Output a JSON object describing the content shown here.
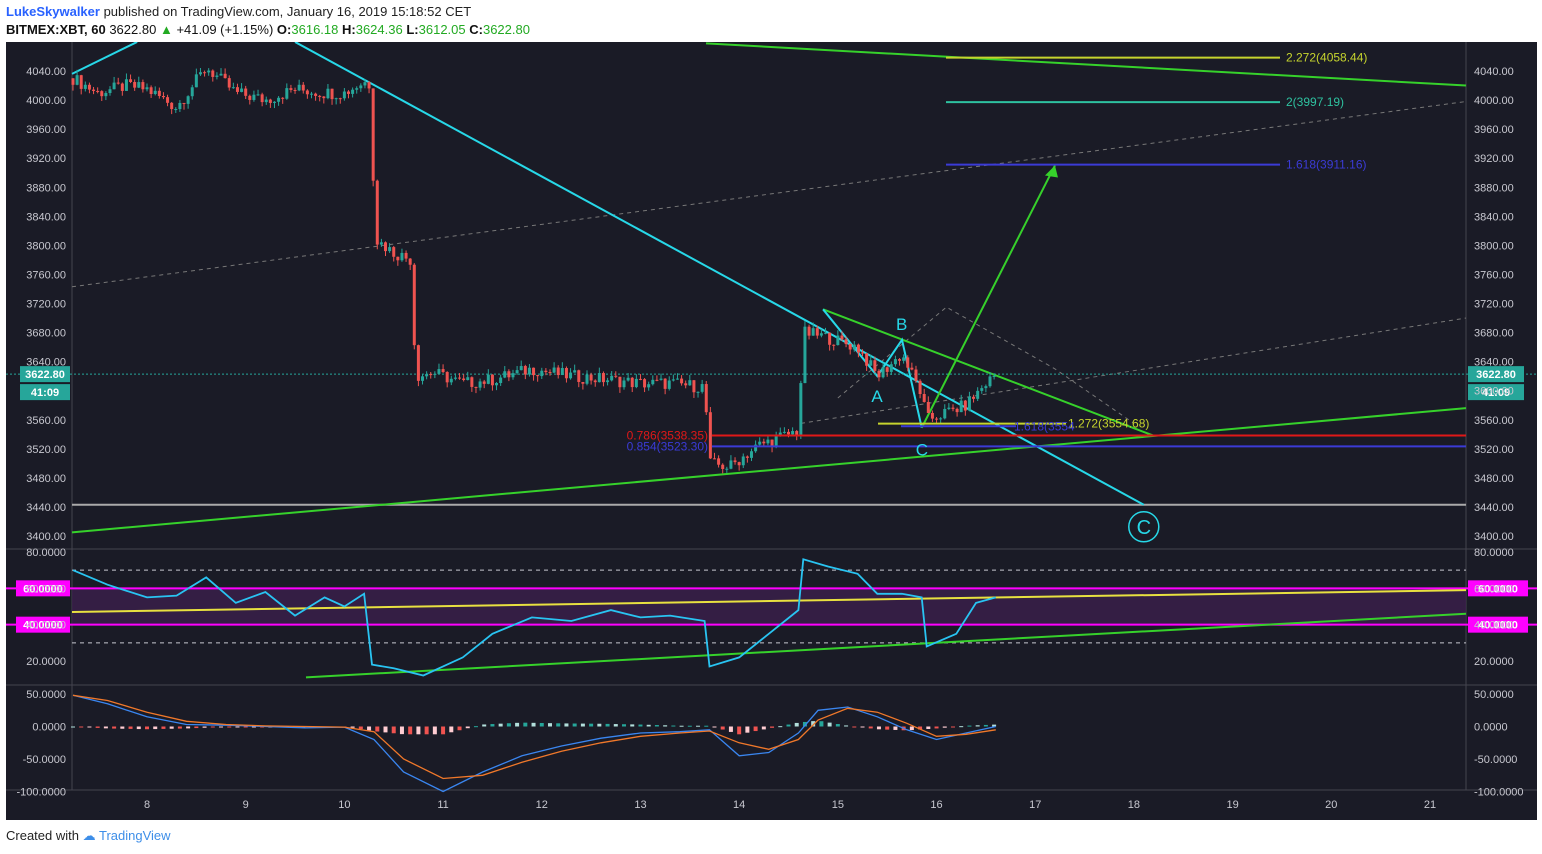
{
  "header": {
    "author": "LukeSkywalker",
    "published": "published on TradingView.com, January 16, 2019 15:18:52 CET",
    "symbol": "BITMEX:XBT, 60",
    "last": "3622.80",
    "change": "+41.09 (+1.15%)",
    "o_label": "O:",
    "o": "3616.18",
    "h_label": "H:",
    "h": "3624.36",
    "l_label": "L:",
    "l": "3612.05",
    "c_label": "C:",
    "c": "3622.80"
  },
  "footer": {
    "created": "Created with",
    "brand": "TradingView"
  },
  "colors": {
    "background": "#1a1b26",
    "up": "#26a69a",
    "down": "#ef5350",
    "trend_cyan": "#27d8e8",
    "trend_green": "#36d12b",
    "rsi": "#29c4f2",
    "rsi_band": "#ff00ff",
    "rsi_fill": "#3a1f4a",
    "macd": "#3a86f0",
    "signal": "#f0782a",
    "fib_yellow": "#c6d42e",
    "fib_blue": "#3b3bd6",
    "fib_teal": "#2ec2a0",
    "fib_red": "#e01818"
  },
  "price_panel": {
    "ticks": [
      "4040.00",
      "4000.00",
      "3960.00",
      "3920.00",
      "3880.00",
      "3840.00",
      "3800.00",
      "3760.00",
      "3720.00",
      "3680.00",
      "3640.00",
      "3600.00",
      "3560.00",
      "3520.00",
      "3480.00",
      "3440.00",
      "3400.00"
    ],
    "left_ticks_visible": [
      "4040.00",
      "4000.00",
      "3960.00",
      "3920.00",
      "3880.00",
      "3840.00",
      "3800.00",
      "3760.00",
      "3720.00",
      "3680.00",
      "3640.00",
      "3560.00",
      "3520.00",
      "3480.00",
      "3440.00",
      "3400.00"
    ],
    "ylim": [
      3400,
      4040
    ],
    "last_price_label": "3622.80",
    "countdown_label": "41:09",
    "wave_labels": {
      "a": "A",
      "b": "B",
      "c": "C",
      "big_c": "C"
    },
    "fib_labels": [
      {
        "text": "2.272(4058.44)",
        "value": 4058.44,
        "color": "#c6d42e"
      },
      {
        "text": "2(3997.19)",
        "value": 3997.19,
        "color": "#2ec2a0"
      },
      {
        "text": "1.618(3911.16)",
        "value": 3911.16,
        "color": "#3b3bd6"
      },
      {
        "text": "1.272(3554.68)",
        "value": 3554.68,
        "color": "#c6d42e"
      },
      {
        "text": "1.618(3554",
        "value": 3551,
        "color": "#3b3bd6"
      },
      {
        "text": "0.786(3538.35)",
        "value": 3538.35,
        "color": "#e01818"
      },
      {
        "text": "0.854(3523.30)",
        "value": 3523.3,
        "color": "#3b3bd6"
      }
    ],
    "horizontal_lines": [
      3443
    ]
  },
  "rsi_panel": {
    "ticks": [
      "80.0000",
      "60.0000",
      "40.0000",
      "20.0000"
    ],
    "badges": [
      "60.0000",
      "40.0000"
    ],
    "ylim": [
      10,
      80
    ]
  },
  "macd_panel": {
    "ticks": [
      "50.0000",
      "0.0000",
      "-50.0000",
      "-100.0000"
    ],
    "ylim": [
      -100,
      50
    ]
  },
  "x_axis": {
    "labels": [
      "8",
      "9",
      "10",
      "11",
      "12",
      "13",
      "14",
      "15",
      "16",
      "17",
      "18",
      "19",
      "20",
      "21"
    ]
  },
  "chart_data": {
    "type": "line",
    "x_day_labels": [
      "8",
      "9",
      "10",
      "11",
      "12",
      "13",
      "14",
      "15",
      "16",
      "17",
      "18",
      "19",
      "20",
      "21"
    ],
    "price_path": {
      "x": [
        7.25,
        7.5,
        7.8,
        8.0,
        8.3,
        8.6,
        8.9,
        9.2,
        9.5,
        9.8,
        10.0,
        10.2,
        10.28,
        10.3,
        10.5,
        10.68,
        10.72,
        10.9,
        11.2,
        11.5,
        11.9,
        12.3,
        12.7,
        13.0,
        13.3,
        13.65,
        13.7,
        13.9,
        14.2,
        14.6,
        14.65,
        14.85,
        15.2,
        15.4,
        15.65,
        15.85,
        15.9,
        16.3,
        16.5,
        16.6
      ],
      "y": [
        4030,
        4010,
        4020,
        4015,
        3990,
        4045,
        4010,
        4000,
        4015,
        4010,
        4010,
        4025,
        4020,
        3810,
        3790,
        3780,
        3620,
        3625,
        3610,
        3615,
        3630,
        3620,
        3615,
        3610,
        3610,
        3605,
        3500,
        3495,
        3525,
        3545,
        3680,
        3675,
        3660,
        3620,
        3650,
        3595,
        3560,
        3580,
        3610,
        3622.8
      ]
    },
    "rsi_path": {
      "x": [
        7.25,
        7.6,
        8.0,
        8.3,
        8.6,
        8.9,
        9.2,
        9.5,
        9.8,
        10.0,
        10.2,
        10.28,
        10.5,
        10.8,
        11.2,
        11.5,
        11.9,
        12.3,
        12.7,
        13.0,
        13.3,
        13.65,
        13.7,
        14.0,
        14.3,
        14.6,
        14.65,
        14.9,
        15.2,
        15.4,
        15.65,
        15.85,
        15.9,
        16.2,
        16.4,
        16.6
      ],
      "y": [
        70,
        62,
        55,
        56,
        66,
        52,
        58,
        45,
        55,
        50,
        57,
        18,
        16,
        12,
        22,
        35,
        44,
        42,
        48,
        44,
        45,
        42,
        17,
        22,
        35,
        48,
        76,
        72,
        68,
        57,
        57,
        55,
        28,
        35,
        52,
        55
      ]
    },
    "macd_path": {
      "x": [
        7.25,
        7.6,
        8.0,
        8.4,
        8.8,
        9.2,
        9.6,
        10.0,
        10.3,
        10.6,
        11.0,
        11.4,
        11.8,
        12.2,
        12.6,
        13.0,
        13.4,
        13.7,
        14.0,
        14.3,
        14.6,
        14.8,
        15.1,
        15.4,
        15.7,
        16.0,
        16.3,
        16.6
      ],
      "y": [
        48,
        35,
        15,
        3,
        2,
        0,
        -2,
        -1,
        -20,
        -70,
        -100,
        -70,
        -45,
        -30,
        -18,
        -10,
        -8,
        -5,
        -45,
        -40,
        -10,
        25,
        30,
        15,
        -5,
        -20,
        -10,
        0
      ]
    },
    "signal_path": {
      "x": [
        7.25,
        7.6,
        8.0,
        8.4,
        8.8,
        9.2,
        9.6,
        10.0,
        10.3,
        10.6,
        11.0,
        11.4,
        11.8,
        12.2,
        12.6,
        13.0,
        13.4,
        13.7,
        14.0,
        14.3,
        14.6,
        14.8,
        15.1,
        15.4,
        15.7,
        16.0,
        16.3,
        16.6
      ],
      "y": [
        48,
        40,
        22,
        8,
        3,
        1,
        0,
        -1,
        -8,
        -50,
        -80,
        -75,
        -55,
        -38,
        -25,
        -15,
        -10,
        -7,
        -25,
        -35,
        -20,
        10,
        28,
        22,
        5,
        -15,
        -12,
        -5
      ]
    },
    "ylim_price": [
      3400,
      4040
    ],
    "ylim_rsi": [
      10,
      80
    ],
    "ylim_macd": [
      -100,
      50
    ]
  }
}
